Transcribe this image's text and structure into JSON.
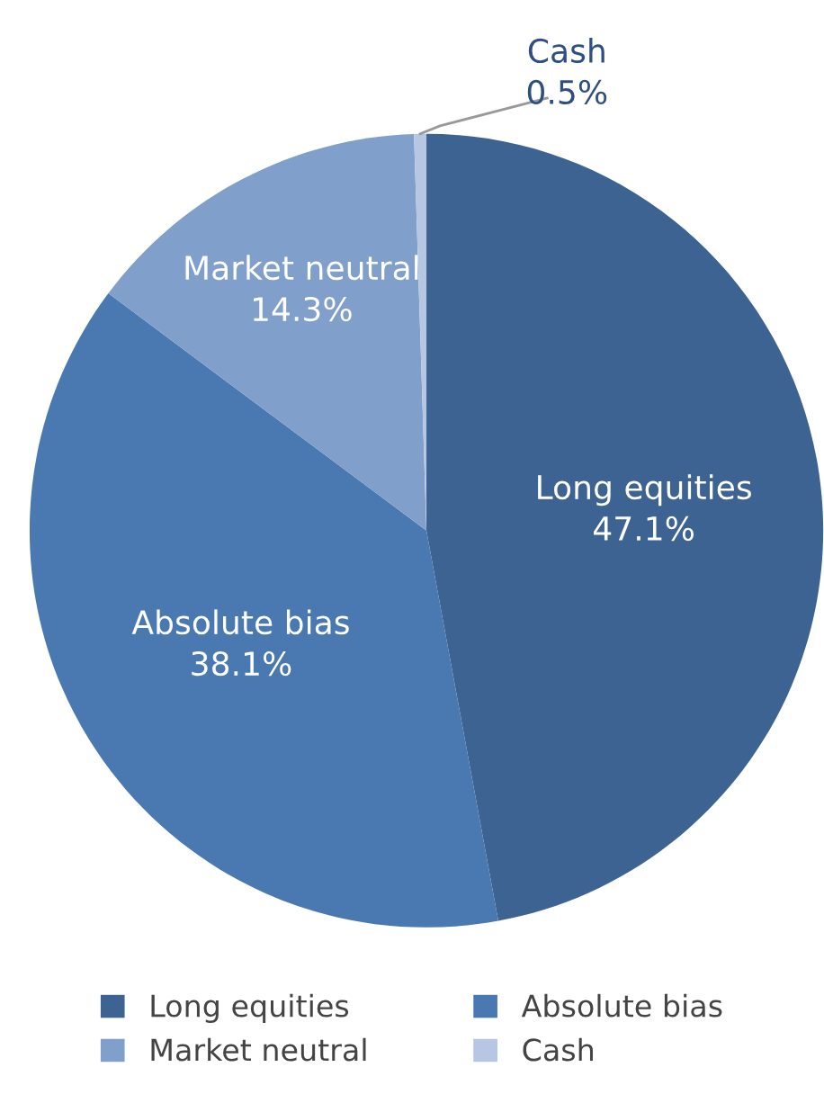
{
  "chart_data": {
    "type": "pie",
    "categories": [
      "Long equities",
      "Absolute bias",
      "Market neutral",
      "Cash"
    ],
    "values": [
      47.1,
      38.1,
      14.3,
      0.5
    ],
    "colors": [
      "#3d6393",
      "#4a79b2",
      "#809fcb",
      "#b7c6e2"
    ],
    "value_labels": [
      "47.1%",
      "38.1%",
      "14.3%",
      "0.5%"
    ],
    "legend": "bottom"
  }
}
